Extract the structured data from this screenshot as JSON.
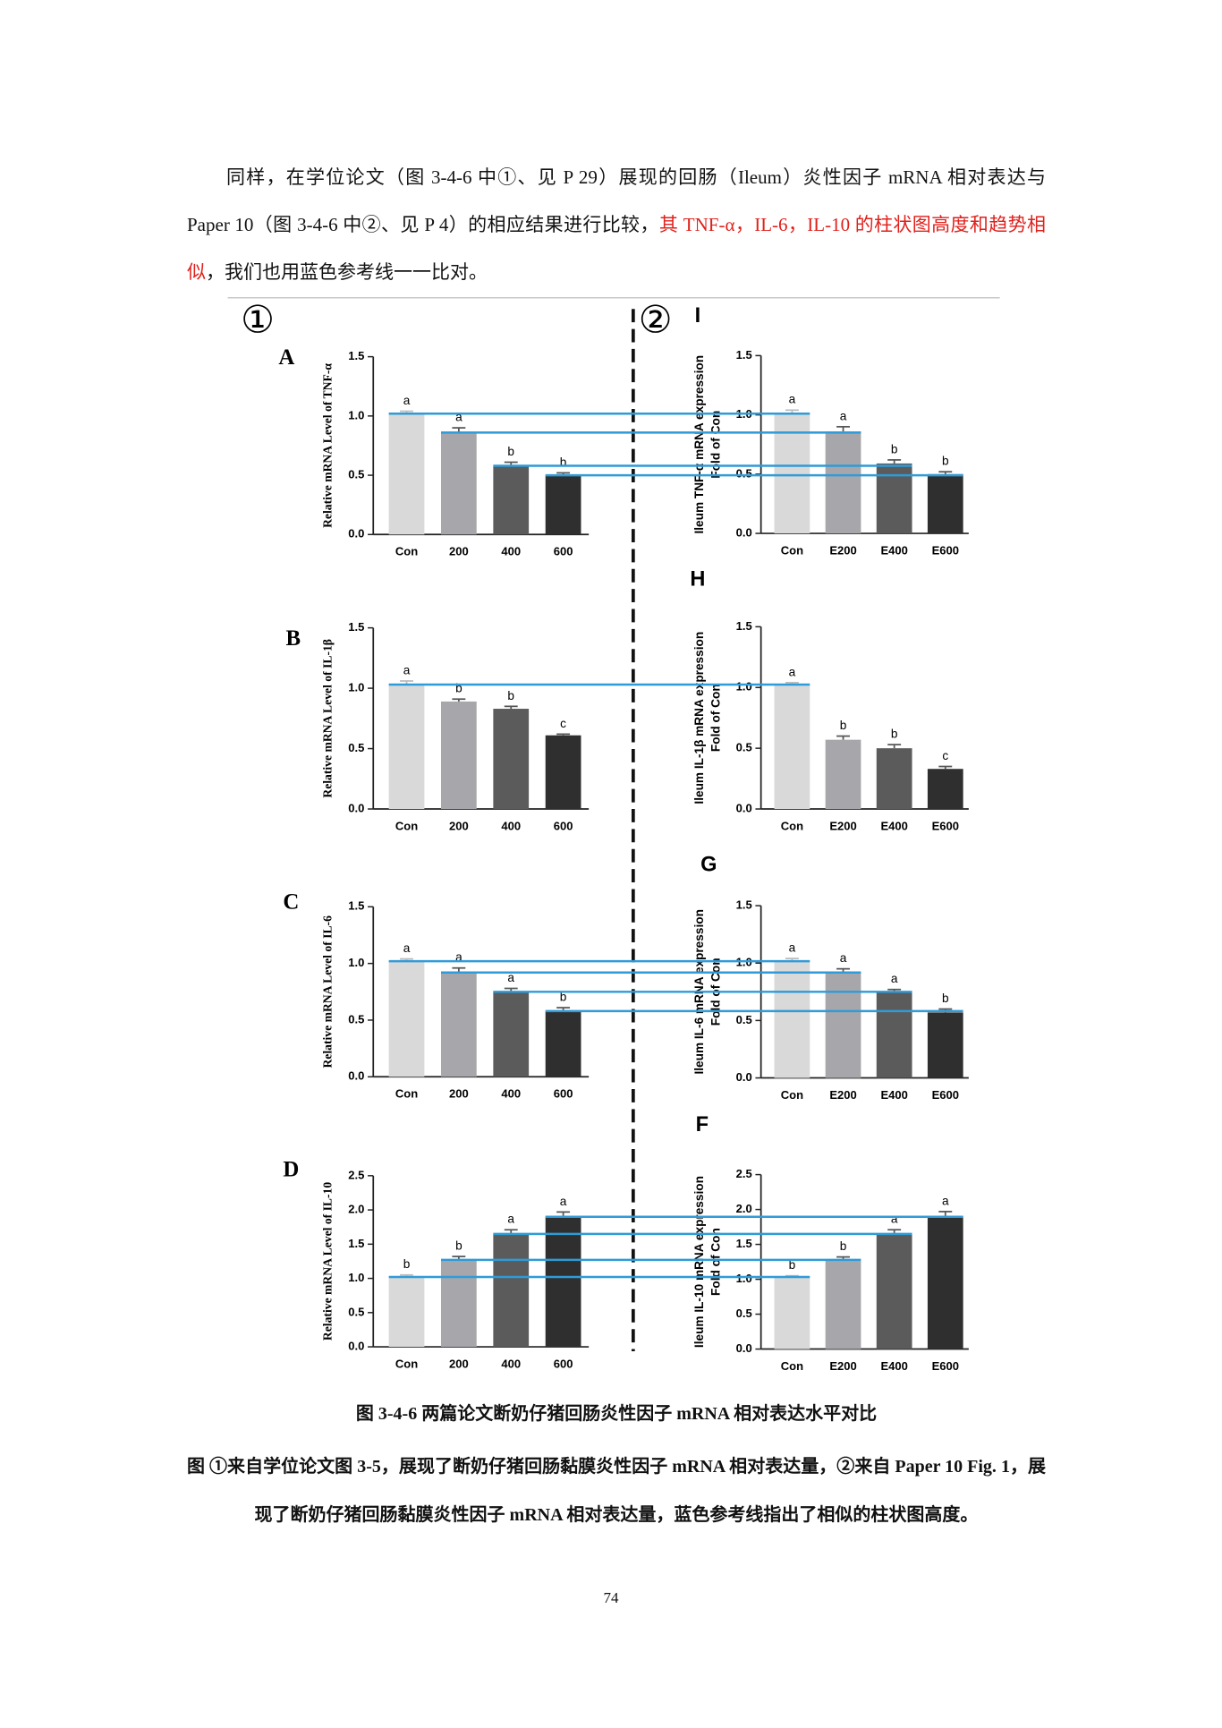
{
  "paragraph": [
    "同样，在学位论文（图 3-4-6 中①、见 P 29）展现的回肠（Ileum）炎性因子 mRNA 相对表达与 Paper 10（图 3-4-6 中②、见 P 4）的相应结果进行比较，",
    "其 TNF-α，IL-6，IL-10 的柱状图高度和趋势相似",
    "，我们也用蓝色参考线一一比对。"
  ],
  "figure_labels": [
    "①",
    "②"
  ],
  "caption_title": "图 3-4-6  两篇论文断奶仔猪回肠炎性因子 mRNA 相对表达水平对比",
  "caption_body": "图  ①来自学位论文图 3-5，展现了断奶仔猪回肠黏膜炎性因子 mRNA 相对表达量，②来自 Paper 10 Fig. 1，展现了断奶仔猪回肠黏膜炎性因子 mRNA 相对表达量，蓝色参考线指出了相似的柱状图高度。",
  "page_number": "74",
  "chart_data": [
    {
      "type": "bar",
      "panel": "A",
      "ylabel": [
        "Relative mRNA Level of TNF-α"
      ],
      "categories": [
        "Con",
        "200",
        "400",
        "600"
      ],
      "values": [
        1.02,
        0.86,
        0.58,
        0.5
      ],
      "errors": [
        0.02,
        0.04,
        0.03,
        0.02
      ],
      "letters": [
        "a",
        "a",
        "b",
        "b"
      ],
      "colors": [
        "#d9d9d9",
        "#a7a7ab",
        "#5b5b5b",
        "#2f2f2f"
      ],
      "ylim": [
        0,
        1.5
      ],
      "yticks": [
        {
          "value": 0,
          "label": "0.0"
        },
        0.5,
        {
          "value": 1,
          "label": "1.0"
        },
        1.5
      ],
      "reference_lines": [
        true,
        true,
        true,
        true
      ]
    },
    {
      "type": "bar",
      "panel": "I",
      "ylabel": [
        "Ileum TNF-α mRNA expression",
        "Fold of Con"
      ],
      "categories": [
        "Con",
        "E200",
        "E400",
        "E600"
      ],
      "values": [
        1.02,
        0.86,
        0.59,
        0.5
      ],
      "errors": [
        0.02,
        0.04,
        0.03,
        0.02
      ],
      "letters": [
        "a",
        "a",
        "b",
        "b"
      ],
      "colors": [
        "#d9d9d9",
        "#a7a7ab",
        "#5b5b5b",
        "#2f2f2f"
      ],
      "ylim": [
        0,
        1.5
      ],
      "yticks": [
        {
          "value": 0,
          "label": "0.0"
        },
        0.5,
        {
          "value": 1,
          "label": "1.0"
        },
        1.5
      ]
    },
    {
      "type": "bar",
      "panel": "B",
      "ylabel": [
        "Relative mRNA Level of IL-1β"
      ],
      "categories": [
        "Con",
        "200",
        "400",
        "600"
      ],
      "values": [
        1.03,
        0.89,
        0.83,
        0.61
      ],
      "errors": [
        0.03,
        0.02,
        0.02,
        0.01
      ],
      "letters": [
        "a",
        "b",
        "b",
        "c"
      ],
      "colors": [
        "#d9d9d9",
        "#a7a7ab",
        "#5b5b5b",
        "#2f2f2f"
      ],
      "ylim": [
        0,
        1.5
      ],
      "yticks": [
        {
          "value": 0,
          "label": "0.0"
        },
        0.5,
        {
          "value": 1,
          "label": "1.0"
        },
        1.5
      ],
      "reference_lines": [
        true,
        false,
        false,
        false
      ]
    },
    {
      "type": "bar",
      "panel": "H",
      "ylabel": [
        "Ileum IL-1β mRNA expression",
        "Fold of Con"
      ],
      "categories": [
        "Con",
        "E200",
        "E400",
        "E600"
      ],
      "values": [
        1.02,
        0.57,
        0.5,
        0.33
      ],
      "errors": [
        0.02,
        0.03,
        0.03,
        0.02
      ],
      "letters": [
        "a",
        "b",
        "b",
        "c"
      ],
      "colors": [
        "#d9d9d9",
        "#a7a7ab",
        "#5b5b5b",
        "#2f2f2f"
      ],
      "ylim": [
        0,
        1.5
      ],
      "yticks": [
        {
          "value": 0,
          "label": "0.0"
        },
        0.5,
        {
          "value": 1,
          "label": "1.0"
        },
        1.5
      ]
    },
    {
      "type": "bar",
      "panel": "C",
      "ylabel": [
        "Relative mRNA Level of IL-6"
      ],
      "categories": [
        "Con",
        "200",
        "400",
        "600"
      ],
      "values": [
        1.02,
        0.92,
        0.75,
        0.58
      ],
      "errors": [
        0.02,
        0.04,
        0.03,
        0.03
      ],
      "letters": [
        "a",
        "a",
        "a",
        "b"
      ],
      "colors": [
        "#d9d9d9",
        "#a7a7ab",
        "#5b5b5b",
        "#2f2f2f"
      ],
      "ylim": [
        0,
        1.5
      ],
      "yticks": [
        {
          "value": 0,
          "label": "0.0"
        },
        0.5,
        {
          "value": 1,
          "label": "1.0"
        },
        1.5
      ],
      "reference_lines": [
        true,
        true,
        true,
        true
      ]
    },
    {
      "type": "bar",
      "panel": "G",
      "ylabel": [
        "Ileum IL-6 mRNA expression",
        "Fold of Con"
      ],
      "categories": [
        "Con",
        "E200",
        "E400",
        "E600"
      ],
      "values": [
        1.02,
        0.91,
        0.75,
        0.57
      ],
      "errors": [
        0.02,
        0.04,
        0.02,
        0.03
      ],
      "letters": [
        "a",
        "a",
        "a",
        "b"
      ],
      "colors": [
        "#d9d9d9",
        "#a7a7ab",
        "#5b5b5b",
        "#2f2f2f"
      ],
      "ylim": [
        0,
        1.5
      ],
      "yticks": [
        {
          "value": 0,
          "label": "0.0"
        },
        0.5,
        {
          "value": 1,
          "label": "1.0"
        },
        1.5
      ]
    },
    {
      "type": "bar",
      "panel": "D",
      "ylabel": [
        "Relative mRNA Level of IL-10"
      ],
      "categories": [
        "Con",
        "200",
        "400",
        "600"
      ],
      "values": [
        1.02,
        1.27,
        1.65,
        1.9
      ],
      "errors": [
        0.03,
        0.05,
        0.06,
        0.07
      ],
      "letters": [
        "b",
        "b",
        "a",
        "a"
      ],
      "colors": [
        "#d9d9d9",
        "#a7a7ab",
        "#5b5b5b",
        "#2f2f2f"
      ],
      "ylim": [
        0,
        2.5
      ],
      "yticks": [
        {
          "value": 0,
          "label": "0.0"
        },
        0.5,
        {
          "value": 1,
          "label": "1.0"
        },
        1.5,
        {
          "value": 2,
          "label": "2.0"
        },
        2.5
      ],
      "reference_lines": [
        true,
        true,
        true,
        true
      ]
    },
    {
      "type": "bar",
      "panel": "F",
      "ylabel": [
        "Ileum IL-10 mRNA expression",
        "Fold of Con"
      ],
      "categories": [
        "Con",
        "E200",
        "E400",
        "E600"
      ],
      "values": [
        1.02,
        1.27,
        1.65,
        1.9
      ],
      "errors": [
        0.03,
        0.05,
        0.06,
        0.07
      ],
      "letters": [
        "b",
        "b",
        "a",
        "a"
      ],
      "colors": [
        "#d9d9d9",
        "#a7a7ab",
        "#5b5b5b",
        "#2f2f2f"
      ],
      "ylim": [
        0,
        2.5
      ],
      "yticks": [
        {
          "value": 0,
          "label": "0.0"
        },
        0.5,
        {
          "value": 1,
          "label": "1.0"
        },
        1.5,
        {
          "value": 2,
          "label": "2.0"
        },
        2.5
      ]
    }
  ]
}
